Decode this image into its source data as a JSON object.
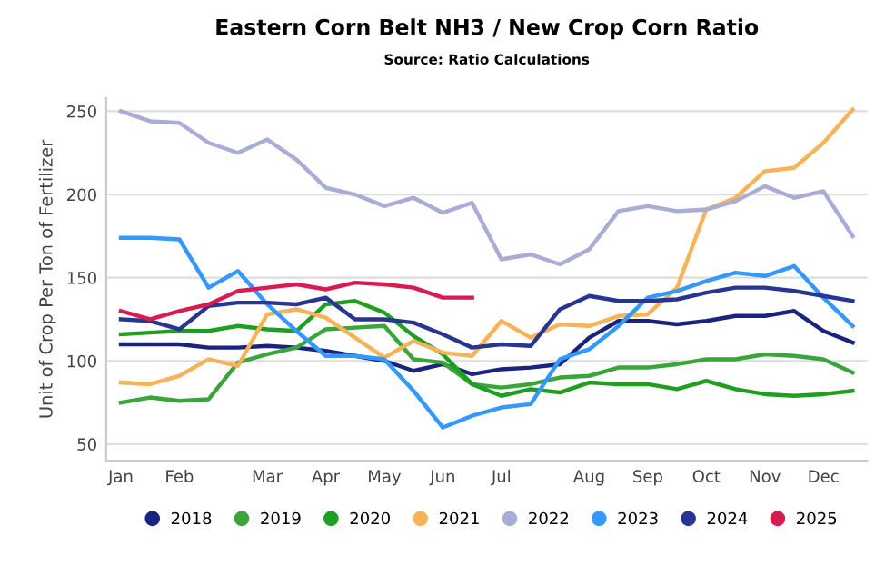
{
  "chart_data": {
    "type": "line",
    "title": "Eastern Corn Belt NH3 / New Crop Corn Ratio",
    "subtitle": "Source: Ratio Calculations",
    "ylabel": "Unit of Crop Per Ton of Fertilizer",
    "categories": [
      "Jan",
      null,
      "Feb",
      null,
      null,
      "Mar",
      null,
      "Apr",
      null,
      "May",
      null,
      "Jun",
      null,
      "Jul",
      null,
      null,
      "Aug",
      null,
      "Sep",
      null,
      "Oct",
      null,
      "Nov",
      null,
      "Dec",
      null
    ],
    "ylim": [
      40,
      258
    ],
    "yticks": [
      50,
      100,
      150,
      200,
      250
    ],
    "grid": "y",
    "legend": "bottom",
    "marker": "none",
    "line_style": "solid",
    "series": [
      {
        "name": "2018",
        "color": "#1a237e",
        "values": [
          110,
          110,
          110,
          108,
          108,
          109,
          108,
          106,
          103,
          100,
          94,
          98,
          92,
          95,
          96,
          98,
          114,
          124,
          124,
          122,
          124,
          127,
          127,
          130,
          118,
          111
        ]
      },
      {
        "name": "2019",
        "color": "#3aa53a",
        "values": [
          75,
          78,
          76,
          77,
          99,
          104,
          108,
          119,
          120,
          121,
          101,
          99,
          86,
          84,
          86,
          90,
          91,
          96,
          96,
          98,
          101,
          101,
          104,
          103,
          101,
          93
        ]
      },
      {
        "name": "2020",
        "color": "#1f9e1f",
        "values": [
          116,
          117,
          118,
          118,
          121,
          119,
          118,
          134,
          136,
          129,
          115,
          104,
          86,
          79,
          83,
          81,
          87,
          86,
          86,
          83,
          88,
          83,
          80,
          79,
          80,
          82
        ]
      },
      {
        "name": "2021",
        "color": "#f7b35a",
        "values": [
          87,
          86,
          91,
          101,
          97,
          128,
          131,
          126,
          114,
          102,
          112,
          105,
          103,
          124,
          114,
          122,
          121,
          127,
          128,
          144,
          191,
          198,
          214,
          216,
          231,
          251
        ]
      },
      {
        "name": "2022",
        "color": "#a9acd6",
        "values": [
          250,
          244,
          243,
          231,
          225,
          233,
          221,
          204,
          200,
          193,
          198,
          189,
          195,
          161,
          164,
          158,
          167,
          190,
          193,
          190,
          191,
          196,
          205,
          198,
          202,
          175
        ]
      },
      {
        "name": "2023",
        "color": "#3399ff",
        "values": [
          174,
          174,
          173,
          144,
          154,
          134,
          118,
          103,
          103,
          101,
          82,
          60,
          67,
          72,
          74,
          101,
          107,
          121,
          138,
          142,
          148,
          153,
          151,
          157,
          138,
          121
        ]
      },
      {
        "name": "2024",
        "color": "#283593",
        "values": [
          125,
          124,
          119,
          133,
          135,
          135,
          134,
          138,
          125,
          125,
          123,
          116,
          108,
          110,
          109,
          131,
          139,
          136,
          136,
          137,
          141,
          144,
          144,
          142,
          139,
          136
        ]
      },
      {
        "name": "2025",
        "color": "#d81b50",
        "values": [
          130,
          125,
          130,
          134,
          142,
          144,
          146,
          143,
          147,
          146,
          144,
          138,
          138,
          null,
          null,
          null,
          null,
          null,
          null,
          null,
          null,
          null,
          null,
          null,
          null,
          null
        ]
      }
    ]
  }
}
